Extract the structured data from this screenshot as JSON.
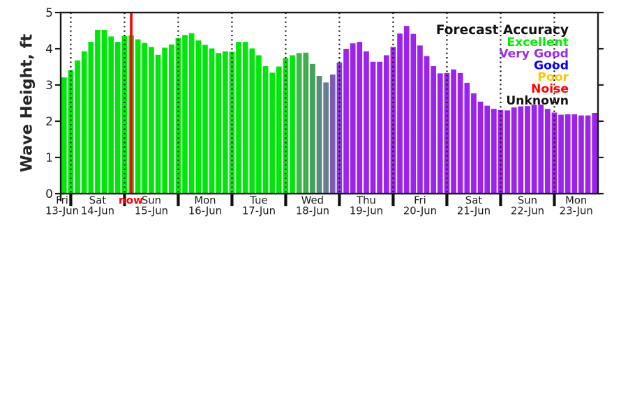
{
  "figure": {
    "background": "#ffffff"
  },
  "y_axis": {
    "label": "Wave Height, ft",
    "ticks": [
      "0",
      "1",
      "2",
      "3",
      "4",
      "5"
    ],
    "range": [
      0,
      5
    ]
  },
  "x_axis": {
    "now_label": "now",
    "now_color": "#fe0000"
  },
  "legend": {
    "title": "Forecast Accuracy",
    "title_color": "#111111",
    "entries": [
      {
        "label": "Excellent",
        "color": "#00ee00"
      },
      {
        "label": "Very Good",
        "color": "#9d2ee8"
      },
      {
        "label": "Good",
        "color": "#0000f5"
      },
      {
        "label": "Poor",
        "color": "#ffc800"
      },
      {
        "label": "Noise",
        "color": "#fe0000"
      },
      {
        "label": "Unknown",
        "color": "#111111"
      }
    ]
  },
  "chart_data": {
    "type": "bar",
    "title": "",
    "xlabel": "",
    "ylabel": "Wave Height, ft",
    "ylim": [
      0,
      5
    ],
    "grid": "vertical-dotted-day-boundaries",
    "x_unit": "3-hour interval bars",
    "bars_per_day": 8,
    "now_bar_index": 10,
    "values": [
      3.21,
      3.41,
      3.68,
      3.93,
      4.19,
      4.52,
      4.52,
      4.34,
      4.19,
      4.35,
      4.37,
      4.26,
      4.16,
      4.05,
      3.83,
      4.03,
      4.12,
      4.3,
      4.38,
      4.43,
      4.23,
      4.11,
      4.01,
      3.88,
      3.93,
      3.92,
      4.19,
      4.19,
      4.01,
      3.82,
      3.52,
      3.34,
      3.51,
      3.74,
      3.82,
      3.88,
      3.89,
      3.58,
      3.25,
      3.07,
      3.29,
      3.62,
      4.0,
      4.15,
      4.19,
      3.93,
      3.64,
      3.64,
      3.82,
      4.05,
      4.42,
      4.63,
      4.41,
      4.09,
      3.8,
      3.52,
      3.32,
      3.33,
      3.43,
      3.33,
      3.06,
      2.77,
      2.54,
      2.43,
      2.34,
      2.31,
      2.3,
      2.38,
      2.41,
      2.42,
      2.45,
      2.46,
      2.34,
      2.24,
      2.18,
      2.19,
      2.19,
      2.16,
      2.16,
      2.23
    ],
    "bar_colors": {
      "excellent": "#00e60a",
      "very_good": "#9b24eb",
      "transition_start_index": 35,
      "transition": [
        "#3cbb49",
        "#3eae4f",
        "#45a15c",
        "#5d8a7c",
        "#687c99",
        "#7a5cb4",
        "#8d35dc"
      ]
    },
    "day_labels": [
      {
        "dow": "Fri",
        "date": "13-Jun"
      },
      {
        "dow": "Sat",
        "date": "14-Jun"
      },
      {
        "dow": "Sun",
        "date": "15-Jun"
      },
      {
        "dow": "Mon",
        "date": "16-Jun"
      },
      {
        "dow": "Tue",
        "date": "17-Jun"
      },
      {
        "dow": "Wed",
        "date": "18-Jun"
      },
      {
        "dow": "Thu",
        "date": "19-Jun"
      },
      {
        "dow": "Fri",
        "date": "20-Jun"
      },
      {
        "dow": "Sat",
        "date": "21-Jun"
      },
      {
        "dow": "Sun",
        "date": "22-Jun"
      },
      {
        "dow": "Mon",
        "date": "23-Jun"
      }
    ]
  }
}
